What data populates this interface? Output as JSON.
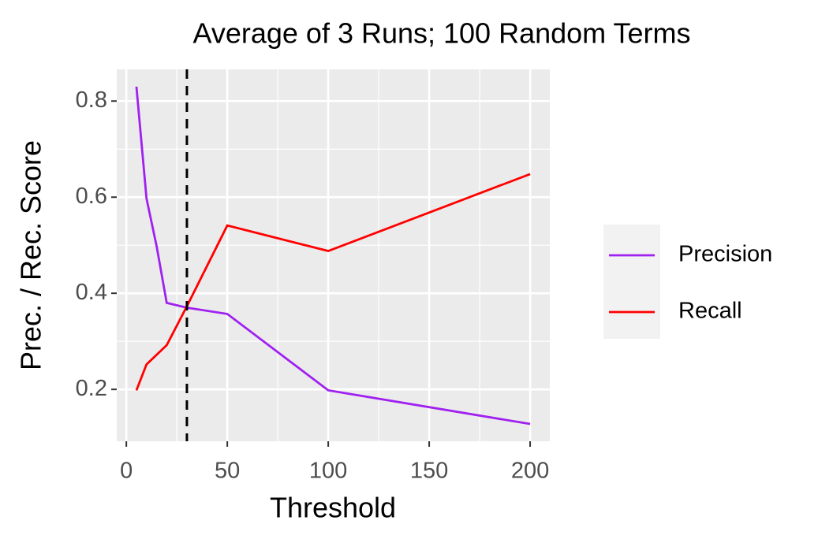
{
  "chart_data": {
    "type": "line",
    "title": "Average of 3 Runs; 100 Random Terms",
    "x_label": "Threshold",
    "y_label": "Prec. / Rec. Score",
    "x": [
      5,
      10,
      15,
      20,
      30,
      50,
      100,
      200
    ],
    "series": [
      {
        "name": "Precision",
        "color": "#a020f0",
        "values": [
          0.83,
          0.597,
          0.498,
          0.38,
          0.37,
          0.357,
          0.198,
          0.128
        ]
      },
      {
        "name": "Recall",
        "color": "#ff0000",
        "values": [
          0.198,
          0.252,
          0.272,
          0.292,
          0.373,
          0.541,
          0.488,
          0.648
        ]
      }
    ],
    "xlim": [
      -4.75,
      209.75
    ],
    "xticks": [
      0,
      50,
      100,
      150,
      200
    ],
    "x_minor_grid": [
      25,
      75,
      125,
      175
    ],
    "ylim": [
      0.092,
      0.866
    ],
    "yticks": [
      0.2,
      0.4,
      0.6,
      0.8
    ],
    "y_minor_grid": [
      0.3,
      0.5,
      0.7
    ],
    "vline": 30,
    "grid": true,
    "legend": "right"
  }
}
